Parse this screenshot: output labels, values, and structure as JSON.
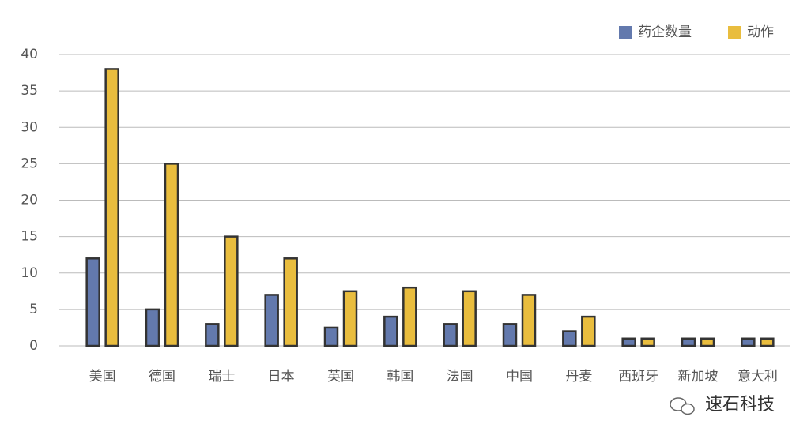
{
  "chart_data": {
    "type": "bar",
    "categories": [
      "美国",
      "德国",
      "瑞士",
      "日本",
      "英国",
      "韩国",
      "法国",
      "中国",
      "丹麦",
      "西班牙",
      "新加坡",
      "意大利"
    ],
    "series": [
      {
        "name": "药企数量",
        "color": "#6379ad",
        "values": [
          12,
          5,
          3,
          7,
          2.5,
          4,
          3,
          3,
          2,
          1,
          1,
          1
        ]
      },
      {
        "name": "动作",
        "color": "#e9bd3e",
        "values": [
          38,
          25,
          15,
          12,
          7.5,
          8,
          7.5,
          7,
          4,
          1,
          1,
          1
        ]
      }
    ],
    "ylim": [
      0,
      40
    ],
    "yticks": [
      0,
      5,
      10,
      15,
      20,
      25,
      30,
      35,
      40
    ],
    "grid": true,
    "legend": "top-right",
    "watermark": "速石科技"
  }
}
